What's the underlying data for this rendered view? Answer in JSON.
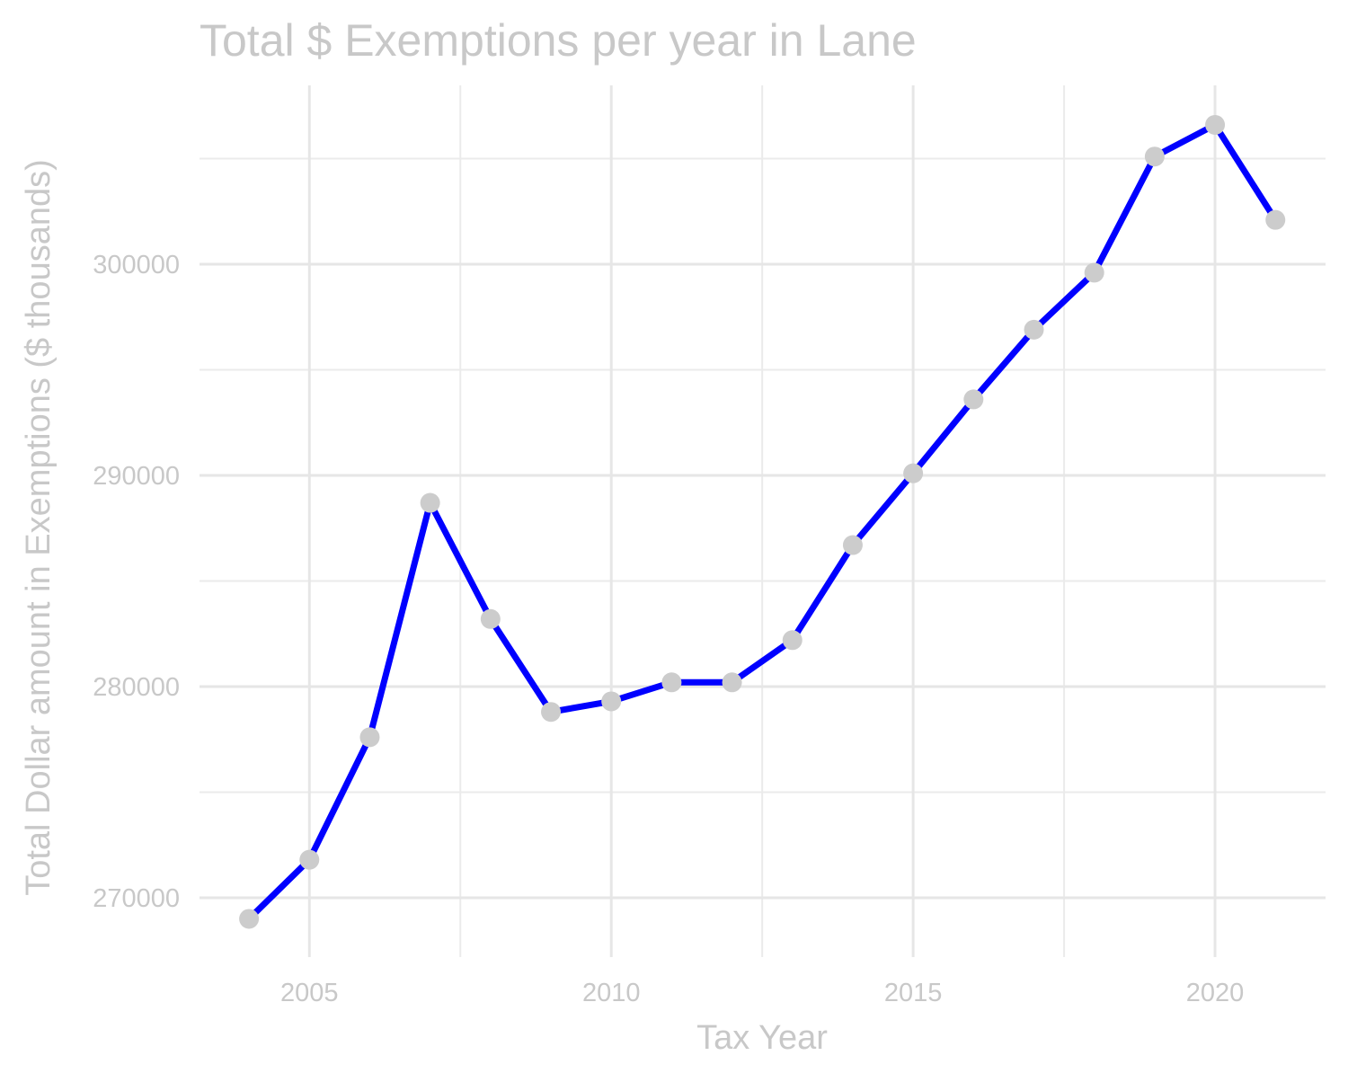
{
  "chart_data": {
    "type": "line",
    "title": "Total $ Exemptions per year in Lane",
    "x_label": "Tax Year",
    "y_label": "Total Dollar amount in Exemptions ($ thousands)",
    "x": [
      2004,
      2005,
      2006,
      2007,
      2008,
      2009,
      2010,
      2011,
      2012,
      2013,
      2014,
      2015,
      2016,
      2017,
      2018,
      2019,
      2020,
      2021
    ],
    "series": [
      {
        "color": "#0000ff",
        "marker_color": "#cccccc",
        "values": [
          269000,
          271800,
          277600,
          288700,
          283200,
          278800,
          279300,
          280200,
          280200,
          282200,
          286700,
          290100,
          293600,
          296900,
          299600,
          305100,
          306600,
          302100
        ]
      }
    ],
    "xlim": [
      2003.18,
      2021.83
    ],
    "ylim": [
      267190,
      308470
    ],
    "xticks": [
      2005,
      2010,
      2015,
      2020
    ],
    "yticks": [
      270000,
      280000,
      290000,
      300000
    ],
    "x_minor_ticks": [
      2007.5,
      2012.5,
      2017.5
    ],
    "y_minor_ticks": [
      275000,
      285000,
      295000,
      305000
    ],
    "grid": true
  }
}
